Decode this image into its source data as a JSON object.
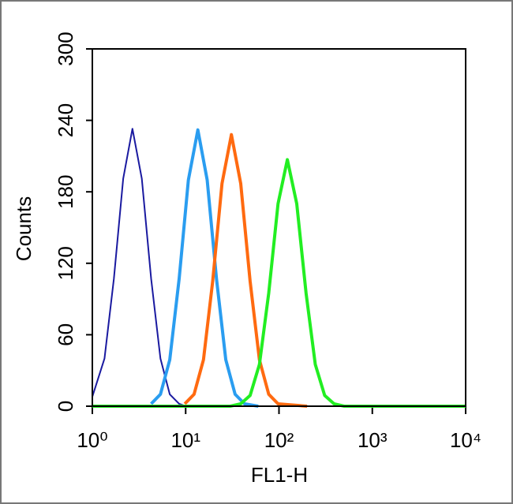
{
  "chart_data": {
    "type": "line",
    "x_label": "FL1-H",
    "y_label": "Counts",
    "xscale": "log",
    "xlim": [
      1,
      10000
    ],
    "xticks": [
      {
        "value": 1,
        "label": "10⁰"
      },
      {
        "value": 10,
        "label": "10¹"
      },
      {
        "value": 100,
        "label": "10²"
      },
      {
        "value": 1000,
        "label": "10³"
      },
      {
        "value": 10000,
        "label": "10⁴"
      }
    ],
    "ylim": [
      0,
      300
    ],
    "yticks": [
      0,
      60,
      120,
      180,
      240,
      300
    ],
    "series": [
      {
        "color": "#1a1aa0",
        "width": 2,
        "x": [
          1,
          1.35,
          1.7,
          2.14,
          2.69,
          3.39,
          4.27,
          5.37,
          6.76,
          8.51,
          10
        ],
        "values": [
          8,
          40,
          107,
          191,
          233,
          191,
          107,
          40,
          10,
          2,
          0
        ]
      },
      {
        "color": "#2a9df0",
        "width": 4,
        "x": [
          4.27,
          5.37,
          6.76,
          8.51,
          10.7,
          13.5,
          17.0,
          21.4,
          26.9,
          33.9,
          42.7,
          60
        ],
        "values": [
          2,
          10,
          39,
          107,
          190,
          232,
          190,
          107,
          39,
          10,
          2,
          0
        ]
      },
      {
        "color": "#ff6a10",
        "width": 4,
        "x": [
          9.77,
          12.3,
          15.5,
          19.5,
          24.5,
          30.9,
          38.9,
          49.0,
          61.7,
          77.6,
          97.7,
          200
        ],
        "values": [
          2,
          10,
          39,
          105,
          187,
          228,
          187,
          105,
          39,
          10,
          2,
          0
        ]
      },
      {
        "color": "#22ee22",
        "width": 4,
        "x": [
          1,
          30,
          38.9,
          49.0,
          61.7,
          77.6,
          97.7,
          123,
          155,
          195,
          245,
          309,
          389,
          500,
          10000
        ],
        "values": [
          0,
          0,
          2,
          9,
          35,
          95,
          170,
          207,
          170,
          95,
          35,
          9,
          2,
          0,
          0
        ]
      }
    ]
  }
}
